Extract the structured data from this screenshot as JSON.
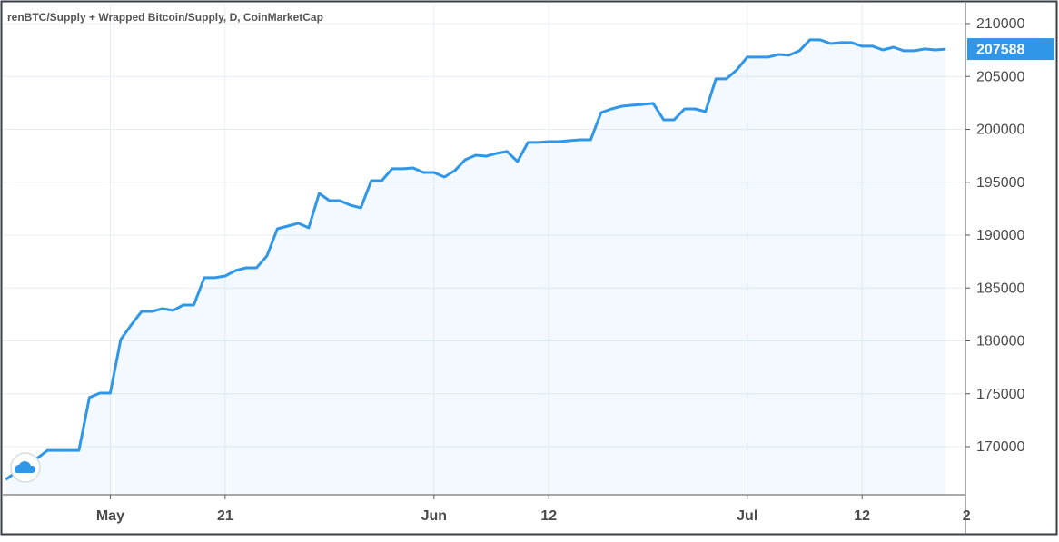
{
  "chart_data": {
    "type": "line",
    "title": "renBTC/Supply + Wrapped Bitcoin/Supply, D, CoinMarketCap",
    "x": [
      0,
      1,
      2,
      3,
      4,
      5,
      6,
      7,
      8,
      9,
      10,
      11,
      12,
      13,
      14,
      15,
      16,
      17,
      18,
      19,
      20,
      21,
      22,
      23,
      24,
      25,
      26,
      27,
      28,
      29,
      30,
      31,
      32,
      33,
      34,
      35,
      36,
      37,
      38,
      39,
      40,
      41,
      42,
      43,
      44,
      45,
      46,
      47,
      48,
      49,
      50,
      51,
      52,
      53,
      54,
      55,
      56,
      57,
      58,
      59,
      60,
      61,
      62,
      63,
      64,
      65,
      66,
      67,
      68,
      69,
      70,
      71,
      72,
      73,
      74,
      75,
      76,
      77,
      78,
      79,
      80,
      81,
      82,
      83,
      84,
      85,
      86,
      87,
      88,
      89,
      90
    ],
    "values": [
      166900,
      167600,
      168450,
      168900,
      169650,
      169650,
      169650,
      169650,
      174640,
      175060,
      175060,
      180130,
      181500,
      182790,
      182790,
      183050,
      182880,
      183390,
      183390,
      185970,
      185970,
      186140,
      186650,
      186910,
      186910,
      188030,
      190600,
      190860,
      191120,
      190690,
      193950,
      193260,
      193260,
      192830,
      192580,
      195150,
      195150,
      196270,
      196270,
      196350,
      195920,
      195920,
      195490,
      196100,
      197130,
      197550,
      197470,
      197730,
      197900,
      196950,
      198760,
      198760,
      198840,
      198840,
      198930,
      199010,
      199010,
      201590,
      201930,
      202190,
      202280,
      202360,
      202450,
      200900,
      200900,
      201930,
      201930,
      201670,
      204770,
      204770,
      205620,
      206830,
      206830,
      206830,
      207080,
      207000,
      207430,
      208460,
      208460,
      208110,
      208200,
      208200,
      207860,
      207860,
      207510,
      207770,
      207430,
      207430,
      207600,
      207510,
      207588
    ],
    "color": "#2f96e8",
    "xlim": [
      -0.3,
      91.9
    ],
    "xticks": [
      {
        "value": 10,
        "label": "May"
      },
      21,
      {
        "value": 41,
        "label": "Jun"
      },
      {
        "value": 52,
        "label": "12"
      },
      {
        "value": 71,
        "label": "Jul"
      },
      {
        "value": 82,
        "label": "12"
      },
      {
        "value": 92,
        "label": "2"
      }
    ],
    "ylim": [
      165450,
      211800
    ],
    "yticks": [
      170000,
      175000,
      180000,
      185000,
      190000,
      195000,
      200000,
      205000,
      210000
    ],
    "grid": true
  }
}
